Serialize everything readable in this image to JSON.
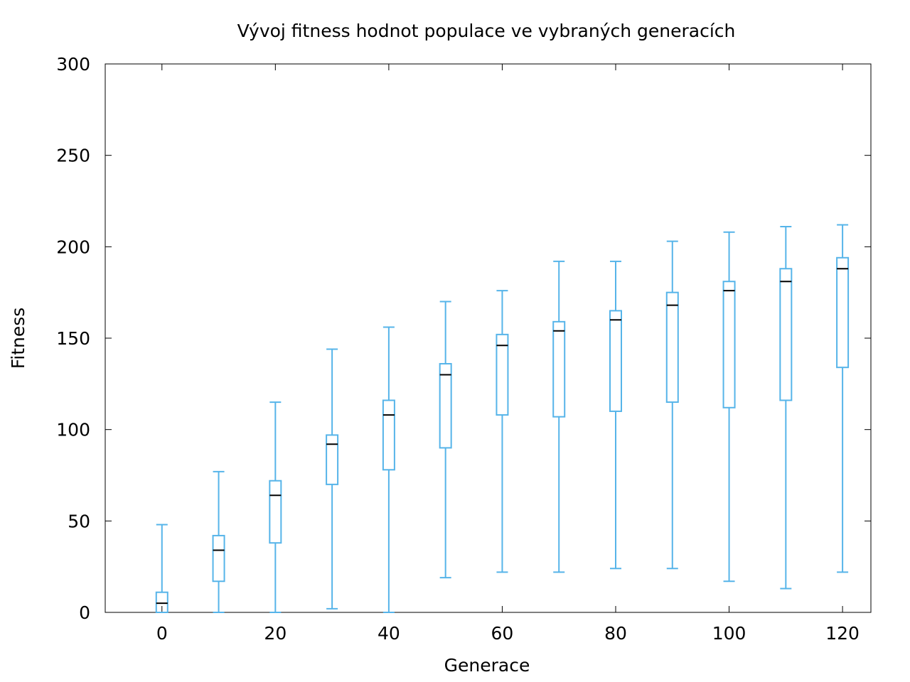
{
  "chart_data": {
    "type": "box",
    "title": "Vývoj fitness hodnot populace ve vybraných generacích",
    "xlabel": "Generace",
    "ylabel": "Fitness",
    "xlim": [
      -10,
      125
    ],
    "ylim": [
      0,
      300
    ],
    "xticks": [
      0,
      20,
      40,
      60,
      80,
      100,
      120
    ],
    "yticks": [
      0,
      50,
      100,
      150,
      200,
      250,
      300
    ],
    "grid": false,
    "legend": "none",
    "color": "#56b4e9",
    "median_color": "#000000",
    "boxes": [
      {
        "x": 0,
        "min": 0,
        "q1": 0,
        "median": 5,
        "q3": 11,
        "max": 48
      },
      {
        "x": 10,
        "min": 0,
        "q1": 17,
        "median": 34,
        "q3": 42,
        "max": 77
      },
      {
        "x": 20,
        "min": 0,
        "q1": 38,
        "median": 64,
        "q3": 72,
        "max": 115
      },
      {
        "x": 30,
        "min": 2,
        "q1": 70,
        "median": 92,
        "q3": 97,
        "max": 144
      },
      {
        "x": 40,
        "min": 0,
        "q1": 78,
        "median": 108,
        "q3": 116,
        "max": 156
      },
      {
        "x": 50,
        "min": 19,
        "q1": 90,
        "median": 130,
        "q3": 136,
        "max": 170
      },
      {
        "x": 60,
        "min": 22,
        "q1": 108,
        "median": 146,
        "q3": 152,
        "max": 176
      },
      {
        "x": 70,
        "min": 22,
        "q1": 107,
        "median": 154,
        "q3": 159,
        "max": 192
      },
      {
        "x": 80,
        "min": 24,
        "q1": 110,
        "median": 160,
        "q3": 165,
        "max": 192
      },
      {
        "x": 90,
        "min": 24,
        "q1": 115,
        "median": 168,
        "q3": 175,
        "max": 203
      },
      {
        "x": 100,
        "min": 17,
        "q1": 112,
        "median": 176,
        "q3": 181,
        "max": 208
      },
      {
        "x": 110,
        "min": 13,
        "q1": 116,
        "median": 181,
        "q3": 188,
        "max": 211
      },
      {
        "x": 120,
        "min": 22,
        "q1": 134,
        "median": 188,
        "q3": 194,
        "max": 212
      }
    ]
  }
}
